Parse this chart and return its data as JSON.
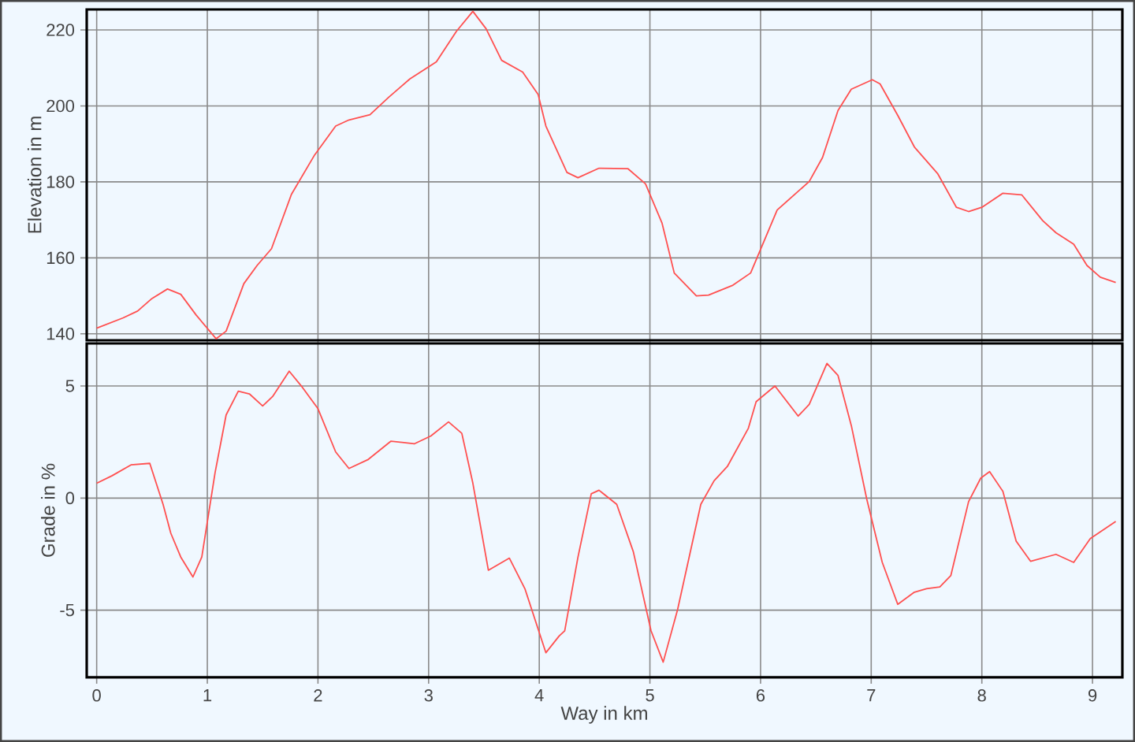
{
  "chart_data": [
    {
      "type": "line",
      "ylabel": "Elevation in m",
      "xlim": [
        -0.09,
        9.27
      ],
      "ylim": [
        138.3,
        225.4
      ],
      "xticks": [
        0,
        1,
        2,
        3,
        4,
        5,
        6,
        7,
        8,
        9
      ],
      "yticks": [
        140,
        160,
        180,
        200,
        220
      ],
      "grid": true,
      "tick_labels": "y",
      "x": [
        0,
        0.24,
        0.37,
        0.5,
        0.64,
        0.76,
        0.9,
        1.08,
        1.17,
        1.33,
        1.45,
        1.58,
        1.76,
        1.97,
        2.16,
        2.28,
        2.47,
        2.64,
        2.83,
        3.07,
        3.25,
        3.4,
        3.52,
        3.66,
        3.85,
        3.99,
        4.06,
        4.25,
        4.35,
        4.54,
        4.8,
        4.96,
        5.11,
        5.22,
        5.42,
        5.53,
        5.75,
        5.91,
        6.15,
        6.44,
        6.56,
        6.7,
        6.82,
        7.01,
        7.08,
        7.24,
        7.39,
        7.6,
        7.77,
        7.88,
        8,
        8.19,
        8.36,
        8.55,
        8.67,
        8.83,
        8.95,
        9.07,
        9.21
      ],
      "series": [
        {
          "color": "#ff5050",
          "values": [
            141.5,
            144.2,
            146,
            149.3,
            151.8,
            150.4,
            144.9,
            138.7,
            140.7,
            153.2,
            158,
            162.4,
            176.7,
            187.1,
            194.7,
            196.3,
            197.7,
            202.3,
            207.1,
            211.6,
            219.6,
            224.9,
            220.3,
            212,
            208.9,
            203,
            194.7,
            182.5,
            181.1,
            183.6,
            183.5,
            179.5,
            169.1,
            156,
            150,
            150.2,
            152.8,
            156,
            172.6,
            180.1,
            186.4,
            198.8,
            204.4,
            206.9,
            205.8,
            197.5,
            189.2,
            182.2,
            173.3,
            172.2,
            173.3,
            177,
            176.6,
            169.8,
            166.6,
            163.6,
            158,
            154.9,
            153.5
          ]
        }
      ]
    },
    {
      "type": "line",
      "xlabel": "Way in km",
      "ylabel": "Grade in %",
      "xlim": [
        -0.09,
        9.27
      ],
      "ylim": [
        -8,
        6.9
      ],
      "xticks": [
        0,
        1,
        2,
        3,
        4,
        5,
        6,
        7,
        8,
        9
      ],
      "yticks": [
        -5,
        0,
        5
      ],
      "grid": true,
      "x": [
        0,
        0.14,
        0.31,
        0.48,
        0.6,
        0.67,
        0.76,
        0.87,
        0.95,
        1.07,
        1.17,
        1.28,
        1.38,
        1.5,
        1.59,
        1.74,
        1.85,
        2,
        2.16,
        2.28,
        2.45,
        2.66,
        2.87,
        3.02,
        3.18,
        3.3,
        3.4,
        3.54,
        3.73,
        3.87,
        4.06,
        4.18,
        4.23,
        4.35,
        4.47,
        4.54,
        4.7,
        4.85,
        5.01,
        5.12,
        5.25,
        5.46,
        5.58,
        5.7,
        5.89,
        5.96,
        6.13,
        6.34,
        6.44,
        6.6,
        6.7,
        6.82,
        6.96,
        7.1,
        7.24,
        7.39,
        7.5,
        7.62,
        7.72,
        7.88,
        7.99,
        8.07,
        8.19,
        8.31,
        8.44,
        8.67,
        8.83,
        8.98,
        9.21
      ],
      "series": [
        {
          "color": "#ff5050",
          "values": [
            0.66,
            1,
            1.48,
            1.55,
            -0.28,
            -1.57,
            -2.63,
            -3.52,
            -2.63,
            1.13,
            3.71,
            4.77,
            4.65,
            4.11,
            4.53,
            5.66,
            5,
            3.99,
            2.06,
            1.32,
            1.71,
            2.54,
            2.42,
            2.77,
            3.4,
            2.89,
            0.66,
            -3.22,
            -2.68,
            -4.04,
            -6.9,
            -6.15,
            -5.92,
            -2.63,
            0.19,
            0.35,
            -0.28,
            -2.39,
            -5.92,
            -7.32,
            -4.98,
            -0.28,
            0.77,
            1.41,
            3.12,
            4.3,
            5,
            3.66,
            4.18,
            6.01,
            5.47,
            3.24,
            -0.05,
            -2.87,
            -4.74,
            -4.2,
            -4.04,
            -3.96,
            -3.45,
            -0.16,
            0.89,
            1.18,
            0.3,
            -1.92,
            -2.82,
            -2.51,
            -2.87,
            -1.81,
            -1.04
          ]
        }
      ]
    }
  ]
}
